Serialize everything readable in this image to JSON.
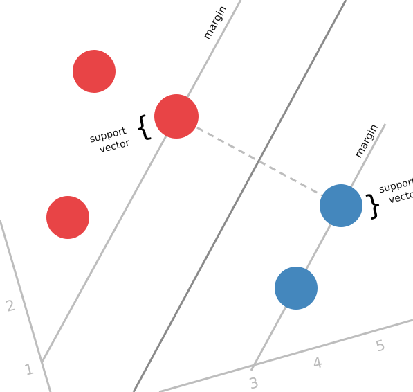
{
  "diagram": {
    "axis_ticks": [
      "1",
      "2",
      "3",
      "4",
      "5"
    ],
    "labels": {
      "margin_left": "margin",
      "margin_right": "margin",
      "support_vector_left_line1": "support",
      "support_vector_left_line2": "vector",
      "support_vector_right_line1": "support",
      "support_vector_right_line2": "vector"
    },
    "colors": {
      "class_a": "#e84446",
      "class_b": "#4487bd",
      "hyperplane": "#8a8a8a",
      "margin_line": "#bdbdbd",
      "axis": "#bdbdbd",
      "distance_line": "#bdbdbd"
    }
  }
}
